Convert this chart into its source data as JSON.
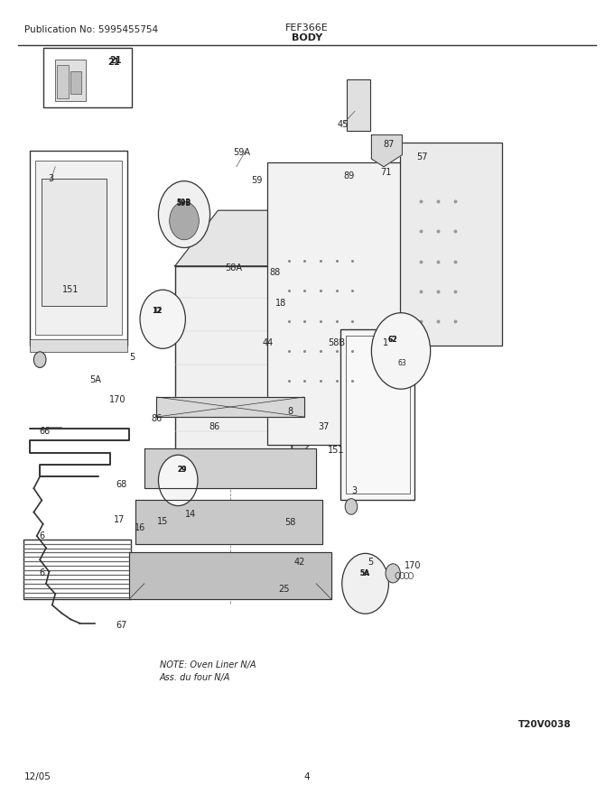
{
  "title_left": "Publication No: 5995455754",
  "title_center": "FEF366E",
  "subtitle_center": "BODY",
  "footer_left": "12/05",
  "footer_center": "4",
  "watermark": "T20V0038",
  "note_line1": "NOTE: Oven Liner N/A",
  "note_line2": "Ass. du four N/A",
  "bg_color": "#ffffff",
  "line_color": "#333333"
}
